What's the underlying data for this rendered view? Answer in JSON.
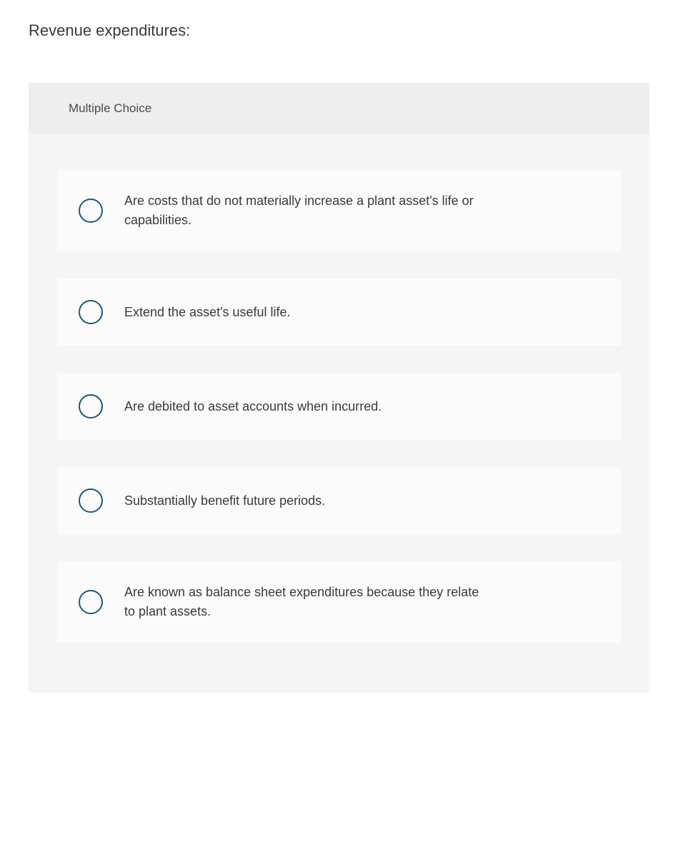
{
  "question": {
    "title": "Revenue expenditures:",
    "type_label": "Multiple Choice"
  },
  "options": [
    {
      "text": "Are costs that do not materially increase a plant asset's life or capabilities."
    },
    {
      "text": "Extend the asset's useful life."
    },
    {
      "text": "Are debited to asset accounts when incurred."
    },
    {
      "text": "Substantially benefit future periods."
    },
    {
      "text": "Are known as balance sheet expenditures because they relate to plant assets."
    }
  ],
  "styling": {
    "page_background": "#ffffff",
    "container_background": "#f5f5f5",
    "header_background": "#eeeeee",
    "option_background": "#fbfbfb",
    "radio_border_color": "#1a5a7a",
    "text_color": "#3a3a3a",
    "title_fontsize": 22,
    "header_fontsize": 17,
    "option_fontsize": 18
  }
}
